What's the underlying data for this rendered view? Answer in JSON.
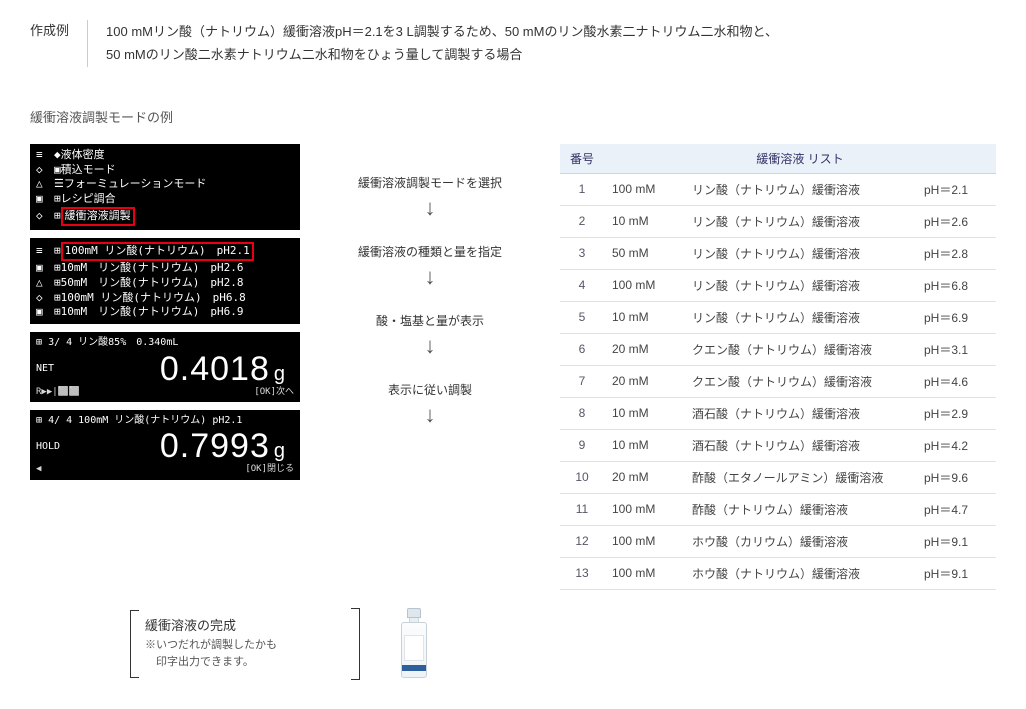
{
  "header": {
    "label": "作成例",
    "text_line1": "100 mMリン酸（ナトリウム）緩衝溶液pH＝2.1を3 L調製するため、50 mMのリン酸水素二ナトリウム二水和物と、",
    "text_line2": "50 mMのリン酸二水素ナトリウム二水和物をひょう量して調製する場合"
  },
  "subtitle": "緩衝溶液調製モードの例",
  "lcd1": {
    "row1": "液体密度",
    "row2": "積込モード",
    "row3": "フォーミュレーションモード",
    "row4": "レシピ調合",
    "row5_boxed": "緩衝溶液調製"
  },
  "lcd2": {
    "row1_boxed": "100mM リン酸(ナトリウム)　pH2.1",
    "row2": "10mM　リン酸(ナトリウム)　pH2.6",
    "row3": "50mM　リン酸(ナトリウム)　pH2.8",
    "row4": "100mM リン酸(ナトリウム)　pH6.8",
    "row5": "10mM　リン酸(ナトリウム)　pH6.9"
  },
  "lcd3": {
    "top": "3/ 4 リン酸85%　0.340mL",
    "net": "NET",
    "weight": "0.4018",
    "unit": "g",
    "footer_right": "[OK]次へ",
    "footer_left": "R▶▶|⬜⬜"
  },
  "lcd4": {
    "top": "4/ 4 100mM リン酸(ナトリウム) pH2.1",
    "hold": "HOLD",
    "weight": "0.7993",
    "unit": "g",
    "footer_right": "[OK]閉じる",
    "footer_left": "◀"
  },
  "steps": {
    "s1": "緩衝溶液調製モードを選択",
    "s2": "緩衝溶液の種類と量を指定",
    "s3": "酸・塩基と量が表示",
    "s4": "表示に従い調製"
  },
  "completion": {
    "title": "緩衝溶液の完成",
    "note1": "※いつだれが調製したかも",
    "note2": "　印字出力できます。"
  },
  "table": {
    "col_no": "番号",
    "col_name": "緩衝溶液 リスト",
    "rows": [
      {
        "no": "1",
        "conc": "100 mM",
        "name": "リン酸（ナトリウム）緩衝溶液",
        "ph": "pH＝2.1"
      },
      {
        "no": "2",
        "conc": "10 mM",
        "name": "リン酸（ナトリウム）緩衝溶液",
        "ph": "pH＝2.6"
      },
      {
        "no": "3",
        "conc": "50 mM",
        "name": "リン酸（ナトリウム）緩衝溶液",
        "ph": "pH＝2.8"
      },
      {
        "no": "4",
        "conc": "100 mM",
        "name": "リン酸（ナトリウム）緩衝溶液",
        "ph": "pH＝6.8"
      },
      {
        "no": "5",
        "conc": "10 mM",
        "name": "リン酸（ナトリウム）緩衝溶液",
        "ph": "pH＝6.9"
      },
      {
        "no": "6",
        "conc": "20 mM",
        "name": "クエン酸（ナトリウム）緩衝溶液",
        "ph": "pH＝3.1"
      },
      {
        "no": "7",
        "conc": "20 mM",
        "name": "クエン酸（ナトリウム）緩衝溶液",
        "ph": "pH＝4.6"
      },
      {
        "no": "8",
        "conc": "10 mM",
        "name": "酒石酸（ナトリウム）緩衝溶液",
        "ph": "pH＝2.9"
      },
      {
        "no": "9",
        "conc": "10 mM",
        "name": "酒石酸（ナトリウム）緩衝溶液",
        "ph": "pH＝4.2"
      },
      {
        "no": "10",
        "conc": "20 mM",
        "name": "酢酸（エタノールアミン）緩衝溶液",
        "ph": "pH＝9.6"
      },
      {
        "no": "11",
        "conc": "100 mM",
        "name": "酢酸（ナトリウム）緩衝溶液",
        "ph": "pH＝4.7"
      },
      {
        "no": "12",
        "conc": "100 mM",
        "name": "ホウ酸（カリウム）緩衝溶液",
        "ph": "pH＝9.1"
      },
      {
        "no": "13",
        "conc": "100 mM",
        "name": "ホウ酸（ナトリウム）緩衝溶液",
        "ph": "pH＝9.1"
      }
    ]
  },
  "icons": {
    "menu": "≡",
    "drop": "◆",
    "diamond": "◇",
    "box": "▣",
    "list": "☰",
    "square": "⊞",
    "triangle": "△"
  },
  "colors": {
    "lcd_bg": "#000000",
    "lcd_fg": "#ffffff",
    "highlight": "#e60012",
    "table_header_bg": "#eaf1f8",
    "table_border": "#dbe3ec",
    "bottle_band": "#2d5f9e"
  }
}
